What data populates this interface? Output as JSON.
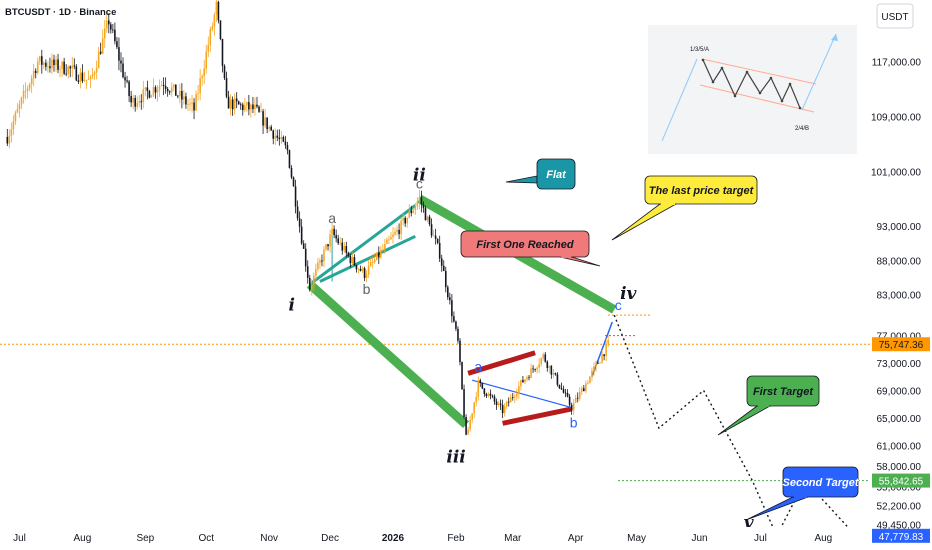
{
  "header": {
    "symbol": "BTCUSDT · 1D · Binance"
  },
  "price_axis": {
    "currency": "USDT"
  },
  "current_price": {
    "value": 75747.36,
    "label": "75,747.36",
    "color": "#ff9800"
  },
  "chart_data": {
    "type": "candlestick",
    "title": "BTCUSDT · 1D · Binance",
    "x_ticks": [
      "Jul",
      "Aug",
      "Sep",
      "Oct",
      "Nov",
      "Dec",
      "2026",
      "Feb",
      "Mar",
      "Apr",
      "May",
      "Jun",
      "Jul",
      "Aug",
      "Se"
    ],
    "y_ticks": [
      "117,000.00",
      "109,000.00",
      "101,000.00",
      "93,000.00",
      "88,000.00",
      "83,000.00",
      "77,000.00",
      "73,000.00",
      "69,000.00",
      "65,000.00",
      "61,000.00",
      "58,000.00",
      "55,000.00",
      "52,200.00",
      "49,450.00"
    ],
    "y_range": [
      46000,
      126000
    ],
    "price_path": [
      {
        "date": "2025-06-25",
        "price": 106000
      },
      {
        "date": "2025-07-10",
        "price": 117000
      },
      {
        "date": "2025-07-25",
        "price": 116000
      },
      {
        "date": "2025-08-05",
        "price": 114000
      },
      {
        "date": "2025-08-14",
        "price": 123000
      },
      {
        "date": "2025-08-25",
        "price": 111000
      },
      {
        "date": "2025-09-10",
        "price": 114000
      },
      {
        "date": "2025-09-25",
        "price": 110000
      },
      {
        "date": "2025-10-06",
        "price": 125000
      },
      {
        "date": "2025-10-11",
        "price": 111000
      },
      {
        "date": "2025-10-25",
        "price": 110000
      },
      {
        "date": "2025-11-10",
        "price": 104000
      },
      {
        "date": "2025-11-21",
        "price": 84000
      },
      {
        "date": "2025-12-02",
        "price": 92000
      },
      {
        "date": "2025-12-10",
        "price": 88500
      },
      {
        "date": "2025-12-18",
        "price": 86000
      },
      {
        "date": "2026-01-05",
        "price": 93000
      },
      {
        "date": "2026-01-14",
        "price": 97000
      },
      {
        "date": "2026-01-24",
        "price": 89000
      },
      {
        "date": "2026-02-02",
        "price": 76000
      },
      {
        "date": "2026-02-06",
        "price": 62000
      },
      {
        "date": "2026-02-12",
        "price": 70000
      },
      {
        "date": "2026-02-24",
        "price": 66000
      },
      {
        "date": "2026-03-05",
        "price": 70000
      },
      {
        "date": "2026-03-16",
        "price": 74000
      },
      {
        "date": "2026-03-30",
        "price": 66500
      },
      {
        "date": "2026-04-08",
        "price": 71000
      },
      {
        "date": "2026-04-17",
        "price": 75747.36
      }
    ],
    "projection": [
      {
        "date": "2026-04-20",
        "price": 80000
      },
      {
        "date": "2026-05-12",
        "price": 63500
      },
      {
        "date": "2026-06-03",
        "price": 69000
      },
      {
        "date": "2026-06-27",
        "price": 55842.65
      },
      {
        "date": "2026-07-09",
        "price": 47779.83
      },
      {
        "date": "2026-07-23",
        "price": 55842.65
      },
      {
        "date": "2026-08-17",
        "price": 47779.83
      }
    ],
    "levels": [
      {
        "name": "First Target",
        "value": 55842.65,
        "label": "55,842.65",
        "color": "#4caf50"
      },
      {
        "name": "Second Target",
        "value": 47779.83,
        "label": "47,779.83",
        "color": "#2962ff"
      }
    ],
    "targets": [
      {
        "name": "First One Reached",
        "value": 77000
      },
      {
        "name": "The last price target",
        "value": 80000
      }
    ],
    "wave_labels": [
      {
        "text": "i",
        "date": "2025-11-20",
        "price": 83000
      },
      {
        "text": "ii",
        "date": "2026-01-14",
        "price": 97000
      },
      {
        "text": "iii",
        "date": "2026-02-06",
        "price": 62000
      },
      {
        "text": "iv",
        "date": "2026-04-20",
        "price": 80000
      },
      {
        "text": "v",
        "date": "2026-07-09",
        "price": 47779.83
      }
    ],
    "sub_labels": [
      {
        "text": "a",
        "date": "2025-12-02",
        "price": 92000,
        "color": "#616161"
      },
      {
        "text": "b",
        "date": "2025-12-18",
        "price": 86000,
        "color": "#616161"
      },
      {
        "text": "c",
        "date": "2026-01-14",
        "price": 97000,
        "color": "#616161"
      },
      {
        "text": "a",
        "date": "2026-02-12",
        "price": 70000,
        "color": "#2962ff"
      },
      {
        "text": "b",
        "date": "2026-03-30",
        "price": 66500,
        "color": "#2962ff"
      },
      {
        "text": "c",
        "date": "2026-04-19",
        "price": 79000,
        "color": "#2962ff"
      }
    ],
    "callouts": [
      {
        "text": "Flat",
        "color": "#1b96a6"
      },
      {
        "text": "First One Reached",
        "color": "#f07a7a"
      },
      {
        "text": "The last price target",
        "color": "#ffeb3b"
      },
      {
        "text": "First Target",
        "color": "#4caf50"
      },
      {
        "text": "Second Target",
        "color": "#2962ff"
      }
    ],
    "inset": {
      "labels": [
        "1/3/5/A",
        "2/4/B"
      ]
    }
  }
}
